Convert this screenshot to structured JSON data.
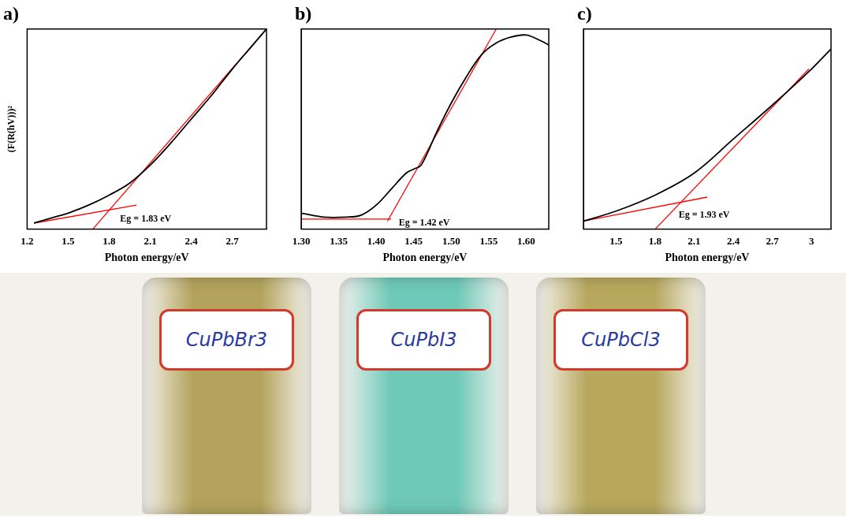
{
  "chart_data": [
    {
      "type": "line",
      "title": "a)",
      "x_label": "Photon energy/eV",
      "y_label": "(F(R(hV)))²",
      "xlim": [
        1.2,
        2.95
      ],
      "xticks": [
        1.2,
        1.5,
        1.8,
        2.1,
        2.4,
        2.7
      ],
      "ylim": [
        0,
        100
      ],
      "grid": false,
      "tick_labels": "x",
      "series": [
        {
          "color": "#000000",
          "x": [
            1.25,
            1.4,
            1.5,
            1.65,
            1.8,
            1.95,
            2.1,
            2.25,
            2.4,
            2.55,
            2.7,
            2.85,
            2.95
          ],
          "values": [
            3,
            6,
            8,
            12,
            17,
            23,
            32,
            43,
            55,
            67,
            80,
            92,
            100
          ]
        },
        {
          "color": "#ff0000",
          "x": [
            1.68,
            2.95
          ],
          "values": [
            0,
            100
          ]
        },
        {
          "color": "#ff0000",
          "x": [
            1.25,
            2.0
          ],
          "values": [
            3,
            12
          ]
        }
      ],
      "annotations": [
        {
          "text": "Eg = 1.83 eV",
          "x": 1.88,
          "y": 5
        }
      ]
    },
    {
      "type": "line",
      "title": "b)",
      "x_label": "Photon energy/eV",
      "xlim": [
        1.3,
        1.63
      ],
      "xticks": [
        {
          "value": 1.3,
          "label": "1.30"
        },
        1.35,
        {
          "value": 1.4,
          "label": "1.40"
        },
        1.45,
        {
          "value": 1.5,
          "label": "1.50"
        },
        1.55,
        {
          "value": 1.6,
          "label": "1.60"
        }
      ],
      "ylim": [
        0,
        100
      ],
      "grid": false,
      "tick_labels": "x",
      "series": [
        {
          "color": "#000000",
          "x": [
            1.3,
            1.33,
            1.36,
            1.38,
            1.4,
            1.42,
            1.44,
            1.45,
            1.46,
            1.48,
            1.5,
            1.52,
            1.54,
            1.56,
            1.58,
            1.6,
            1.62,
            1.63
          ],
          "values": [
            8,
            6,
            6,
            7,
            12,
            20,
            28,
            30,
            32,
            48,
            63,
            76,
            87,
            93,
            96,
            97,
            94,
            92
          ]
        },
        {
          "color": "#ff0000",
          "x": [
            1.415,
            1.56
          ],
          "values": [
            4,
            100
          ]
        },
        {
          "color": "#ff0000",
          "x": [
            1.3,
            1.42
          ],
          "values": [
            5,
            5
          ]
        }
      ],
      "annotations": [
        {
          "text": "Eg = 1.42 eV",
          "x": 1.43,
          "y": 3
        }
      ]
    },
    {
      "type": "line",
      "title": "c)",
      "x_label": "Photon energy/eV",
      "xlim": [
        1.25,
        3.15
      ],
      "xticks": [
        1.5,
        1.8,
        2.1,
        2.4,
        2.7,
        3.0
      ],
      "ylim": [
        0,
        100
      ],
      "grid": false,
      "tick_labels": "x",
      "series": [
        {
          "color": "#000000",
          "x": [
            1.25,
            1.5,
            1.8,
            2.1,
            2.4,
            2.7,
            3.0,
            3.15
          ],
          "values": [
            4,
            9,
            17,
            28,
            45,
            62,
            80,
            90
          ]
        },
        {
          "color": "#ff0000",
          "x": [
            1.8,
            2.98
          ],
          "values": [
            0,
            80
          ]
        },
        {
          "color": "#ff0000",
          "x": [
            1.25,
            2.2
          ],
          "values": [
            4,
            16
          ]
        }
      ],
      "annotations": [
        {
          "text": "Eg = 1.93 eV",
          "x": 1.98,
          "y": 7
        }
      ]
    }
  ],
  "photo": {
    "vials": [
      {
        "label": "CuPbBr3",
        "color": "#b3a35c"
      },
      {
        "label": "CuPbI3",
        "color": "#6fc9b8"
      },
      {
        "label": "CuPbCl3",
        "color": "#b7a85e"
      }
    ]
  }
}
